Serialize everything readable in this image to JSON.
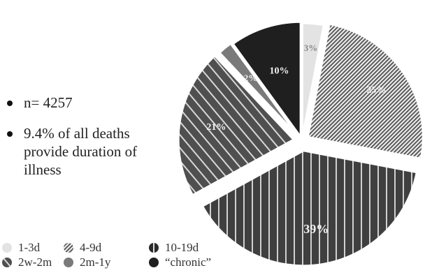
{
  "notes": [
    "n= 4257",
    "9.4% of all deaths provide duration of illness"
  ],
  "chart_data": {
    "type": "pie",
    "title": "",
    "slices": [
      {
        "label": "1-3d",
        "value": 3,
        "display": "3%",
        "color": "#e3e3e3",
        "pattern": "solid-light"
      },
      {
        "label": "4-9d",
        "value": 25,
        "display": "25%",
        "color": "#6a6a6a",
        "pattern": "diagonal-hatch"
      },
      {
        "label": "10-19d",
        "value": 39,
        "display": "39%",
        "color": "#4a4a4a",
        "pattern": "vertical-stripes"
      },
      {
        "label": "2w-2m",
        "value": 21,
        "display": "21%",
        "color": "#555555",
        "pattern": "diagonal-stripes"
      },
      {
        "label": "2m-1y",
        "value": 2,
        "display": "2%",
        "color": "#7a7a7a",
        "pattern": "solid-gray"
      },
      {
        "label": "“chronic”",
        "value": 10,
        "display": "10%",
        "color": "#1f1f1f",
        "pattern": "solid-dark"
      }
    ],
    "legend_placement": "bottom-left"
  }
}
